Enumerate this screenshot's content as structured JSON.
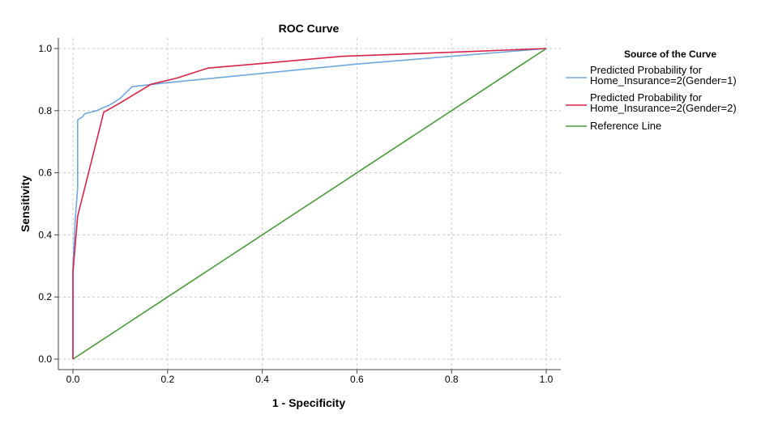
{
  "chart_data": {
    "type": "line",
    "title": "ROC Curve",
    "xlabel": "1 - Specificity",
    "ylabel": "Sensitivity",
    "xlim": [
      0,
      1
    ],
    "ylim": [
      0,
      1
    ],
    "x_ticks": [
      "0.0",
      "0.2",
      "0.4",
      "0.6",
      "0.8",
      "1.0"
    ],
    "y_ticks": [
      "0.0",
      "0.2",
      "0.4",
      "0.6",
      "0.8",
      "1.0"
    ],
    "grid": true,
    "legend": {
      "title": "Source of the Curve",
      "placement": "right"
    },
    "series": [
      {
        "name": [
          "Predicted Probability for",
          "Home_Insurance=2(Gender=1)"
        ],
        "color": "#6fa8dc",
        "points": [
          [
            0,
            0
          ],
          [
            0,
            0.3
          ],
          [
            0.005,
            0.45
          ],
          [
            0.01,
            0.55
          ],
          [
            0.01,
            0.77
          ],
          [
            0.02,
            0.78
          ],
          [
            0.025,
            0.79
          ],
          [
            0.05,
            0.8
          ],
          [
            0.08,
            0.82
          ],
          [
            0.1,
            0.84
          ],
          [
            0.125,
            0.877
          ],
          [
            0.2,
            0.89
          ],
          [
            0.4,
            0.92
          ],
          [
            0.6,
            0.95
          ],
          [
            0.8,
            0.975
          ],
          [
            1.0,
            1.0
          ]
        ]
      },
      {
        "name": [
          "Predicted Probability for",
          "Home_Insurance=2(Gender=2)"
        ],
        "color": "#d6234a",
        "points": [
          [
            0,
            0
          ],
          [
            0,
            0.28
          ],
          [
            0.01,
            0.46
          ],
          [
            0.065,
            0.795
          ],
          [
            0.1,
            0.825
          ],
          [
            0.165,
            0.885
          ],
          [
            0.22,
            0.905
          ],
          [
            0.285,
            0.937
          ],
          [
            0.4,
            0.952
          ],
          [
            0.57,
            0.975
          ],
          [
            0.8,
            0.988
          ],
          [
            1.0,
            1.0
          ]
        ]
      },
      {
        "name": [
          "Reference Line"
        ],
        "color": "#4a9a3a",
        "points": [
          [
            0,
            0
          ],
          [
            1,
            1
          ]
        ]
      }
    ]
  }
}
